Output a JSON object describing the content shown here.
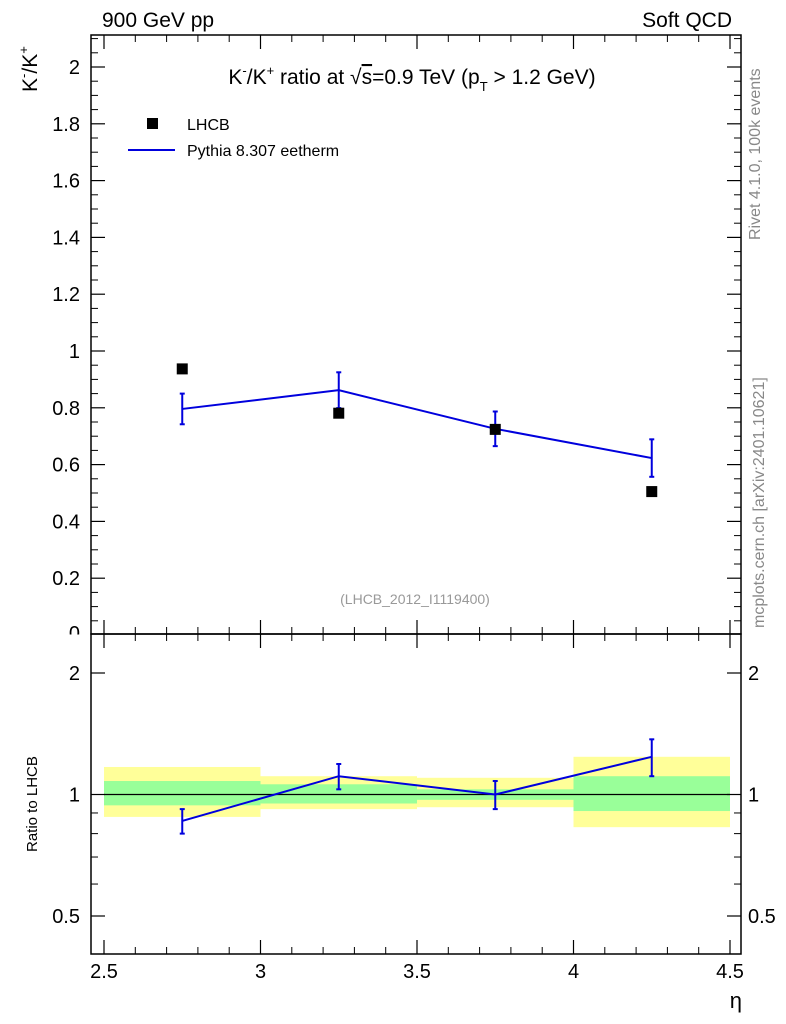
{
  "header": {
    "left": "900 GeV pp",
    "right": "Soft QCD"
  },
  "side": {
    "rivet": "Rivet 4.1.0,  100k events",
    "mcplots": "mcplots.cern.ch [arXiv:2401.10621]"
  },
  "chart_data": {
    "type": "scatter",
    "title_parts": {
      "pre": "K",
      "pre_sup": "-",
      "mid": "/K",
      "mid_sup": "+",
      "rest": " ratio at ",
      "sqrt": "√",
      "s": "s",
      "energy": "=0.9 TeV (p",
      "sub": "T",
      "post": " > 1.2 GeV)"
    },
    "ylabel_parts": {
      "a": "K",
      "a_sup": "-",
      "b": "/K",
      "b_sup": "+"
    },
    "xlabel": "η",
    "ratio_ylabel": "Ratio to LHCB",
    "analysis_id": "(LHCB_2012_I1119400)",
    "xlim": [
      2.5,
      4.5
    ],
    "ylim": [
      0,
      2.12
    ],
    "ratio_ylim": [
      0.4,
      2.3
    ],
    "x_ticks": [
      2.5,
      3,
      3.5,
      4,
      4.5
    ],
    "x_tick_labels": [
      "2.5",
      "3",
      "3.5",
      "4",
      "4.5"
    ],
    "y_ticks": [
      0.2,
      0.4,
      0.6,
      0.8,
      1,
      1.2,
      1.4,
      1.6,
      1.8,
      2
    ],
    "y_tick_labels": [
      "0.2",
      "0.4",
      "0.6",
      "0.8",
      "1",
      "1.2",
      "1.4",
      "1.6",
      "1.8",
      "2"
    ],
    "y_zero_label": "0",
    "ratio_ticks": [
      0.5,
      1,
      2
    ],
    "ratio_tick_labels": [
      "0.5",
      "1",
      "2"
    ],
    "legend": [
      {
        "name": "LHCB",
        "marker": "square",
        "color": "#000000"
      },
      {
        "name": "Pythia 8.307 eetherm",
        "marker": "line",
        "color": "#0000dd"
      }
    ],
    "series": [
      {
        "name": "LHCB",
        "x": [
          2.75,
          3.25,
          3.75,
          4.25
        ],
        "y": [
          0.937,
          0.781,
          0.724,
          0.505
        ]
      },
      {
        "name": "Pythia 8.307 eetherm",
        "x": [
          2.75,
          3.25,
          3.75,
          4.25
        ],
        "y": [
          0.796,
          0.862,
          0.726,
          0.623
        ],
        "yerr": [
          0.054,
          0.063,
          0.061,
          0.066
        ]
      }
    ],
    "ratio": {
      "bins": [
        [
          2.5,
          3.0
        ],
        [
          3.0,
          3.5
        ],
        [
          3.5,
          4.0
        ],
        [
          4.0,
          4.5
        ]
      ],
      "yellow_band": [
        [
          0.88,
          1.17
        ],
        [
          0.92,
          1.11
        ],
        [
          0.93,
          1.1
        ],
        [
          0.83,
          1.24
        ]
      ],
      "green_band": [
        [
          0.94,
          1.08
        ],
        [
          0.95,
          1.06
        ],
        [
          0.97,
          1.03
        ],
        [
          0.91,
          1.11
        ]
      ],
      "mc_x": [
        2.75,
        3.25,
        3.75,
        4.25
      ],
      "mc_y": [
        0.86,
        1.11,
        1.0,
        1.24
      ],
      "mc_yerr": [
        0.06,
        0.08,
        0.08,
        0.13
      ]
    },
    "colors": {
      "data": "#000000",
      "mc": "#0000dd",
      "band_yellow": "#ffff99",
      "band_green": "#99ff99",
      "frame": "#000000",
      "side_text": "#888888",
      "analysis_text": "#999999"
    }
  }
}
